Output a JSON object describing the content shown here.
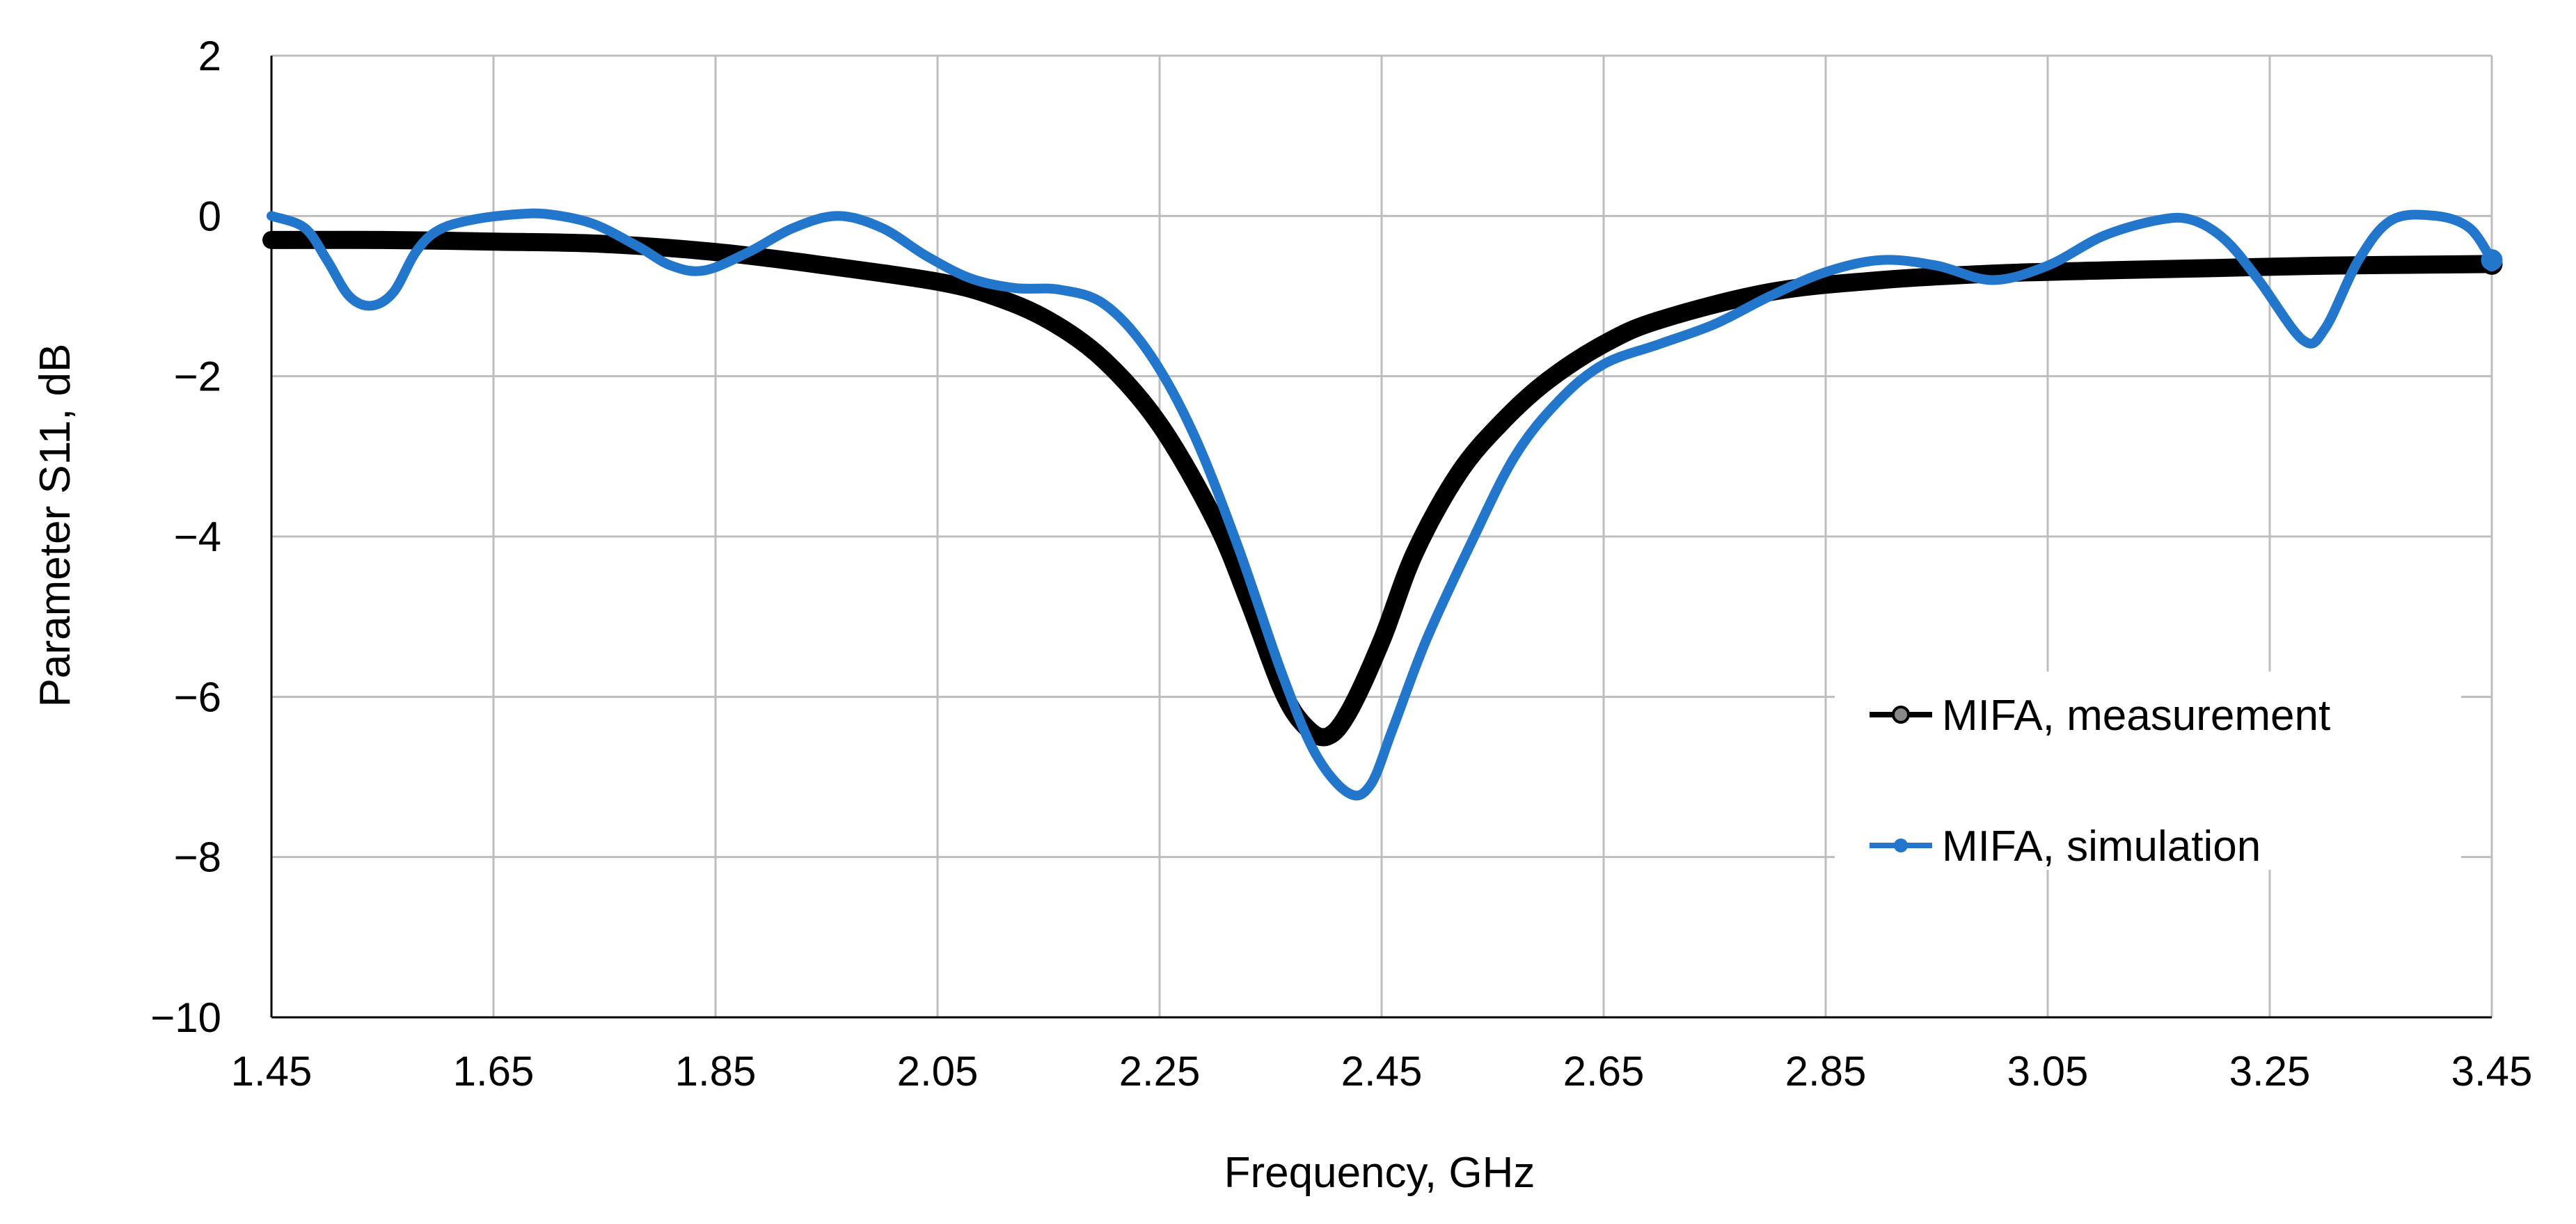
{
  "chart_data": {
    "type": "line",
    "title": "",
    "xlabel": "Frequency, GHz",
    "ylabel": "Parameter S11, dB",
    "xlim": [
      1.45,
      3.45
    ],
    "ylim": [
      -10,
      2
    ],
    "x_ticks": [
      "1.45",
      "1.65",
      "1.85",
      "2.05",
      "2.25",
      "2.45",
      "2.65",
      "2.85",
      "3.05",
      "3.25",
      "3.45"
    ],
    "y_ticks": [
      "2",
      "0",
      "−2",
      "−4",
      "−6",
      "−8",
      "−10"
    ],
    "grid": true,
    "legend_position": "right",
    "series": [
      {
        "name": "MIFA, measurement",
        "color": "#000000",
        "x": [
          1.45,
          1.55,
          1.65,
          1.75,
          1.85,
          1.95,
          2.05,
          2.1,
          2.15,
          2.2,
          2.25,
          2.3,
          2.33,
          2.36,
          2.38,
          2.4,
          2.42,
          2.45,
          2.48,
          2.52,
          2.56,
          2.6,
          2.65,
          2.7,
          2.8,
          2.9,
          3.0,
          3.1,
          3.2,
          3.3,
          3.45
        ],
        "y": [
          -0.3,
          -0.3,
          -0.32,
          -0.35,
          -0.45,
          -0.62,
          -0.82,
          -1.0,
          -1.3,
          -1.8,
          -2.6,
          -3.8,
          -4.8,
          -5.9,
          -6.35,
          -6.5,
          -6.2,
          -5.3,
          -4.2,
          -3.2,
          -2.55,
          -2.05,
          -1.6,
          -1.3,
          -0.95,
          -0.8,
          -0.72,
          -0.68,
          -0.65,
          -0.62,
          -0.6
        ]
      },
      {
        "name": "MIFA, simulation",
        "color": "#2277cc",
        "x": [
          1.45,
          1.48,
          1.5,
          1.52,
          1.54,
          1.56,
          1.58,
          1.6,
          1.63,
          1.67,
          1.7,
          1.74,
          1.78,
          1.81,
          1.84,
          1.88,
          1.92,
          1.96,
          2.0,
          2.04,
          2.08,
          2.12,
          2.16,
          2.2,
          2.24,
          2.28,
          2.32,
          2.36,
          2.39,
          2.42,
          2.44,
          2.46,
          2.49,
          2.53,
          2.57,
          2.61,
          2.65,
          2.7,
          2.75,
          2.8,
          2.85,
          2.9,
          2.95,
          3.0,
          3.05,
          3.1,
          3.15,
          3.18,
          3.21,
          3.24,
          3.28,
          3.3,
          3.33,
          3.36,
          3.4,
          3.43,
          3.45
        ],
        "y": [
          0.0,
          -0.15,
          -0.55,
          -1.0,
          -1.12,
          -0.95,
          -0.45,
          -0.18,
          -0.05,
          0.02,
          0.02,
          -0.1,
          -0.38,
          -0.62,
          -0.68,
          -0.45,
          -0.15,
          0.0,
          -0.15,
          -0.5,
          -0.78,
          -0.9,
          -0.92,
          -1.1,
          -1.7,
          -2.7,
          -4.1,
          -5.7,
          -6.7,
          -7.2,
          -7.1,
          -6.4,
          -5.3,
          -4.1,
          -3.0,
          -2.3,
          -1.85,
          -1.6,
          -1.35,
          -1.0,
          -0.7,
          -0.55,
          -0.62,
          -0.8,
          -0.62,
          -0.25,
          -0.05,
          -0.05,
          -0.3,
          -0.8,
          -1.55,
          -1.4,
          -0.55,
          -0.05,
          0.0,
          -0.15,
          -0.55
        ]
      }
    ]
  }
}
